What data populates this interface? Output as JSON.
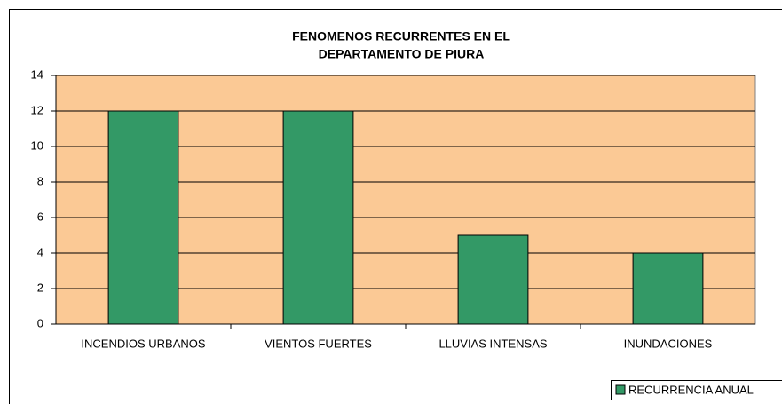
{
  "chart_data": {
    "type": "bar",
    "title": [
      "FENOMENOS RECURRENTES EN EL",
      "DEPARTAMENTO DE PIURA"
    ],
    "categories": [
      "INCENDIOS URBANOS",
      "VIENTOS FUERTES",
      "LLUVIAS INTENSAS",
      "INUNDACIONES"
    ],
    "series": [
      {
        "name": "RECURRENCIA ANUAL",
        "color": "#339966",
        "values": [
          12,
          12,
          5,
          4
        ]
      }
    ],
    "ylim": [
      0,
      14
    ],
    "yticks": [
      0,
      2,
      4,
      6,
      8,
      10,
      12,
      14
    ],
    "grid": true,
    "plot_background": "#fbc995",
    "legend": "bottom-right"
  }
}
